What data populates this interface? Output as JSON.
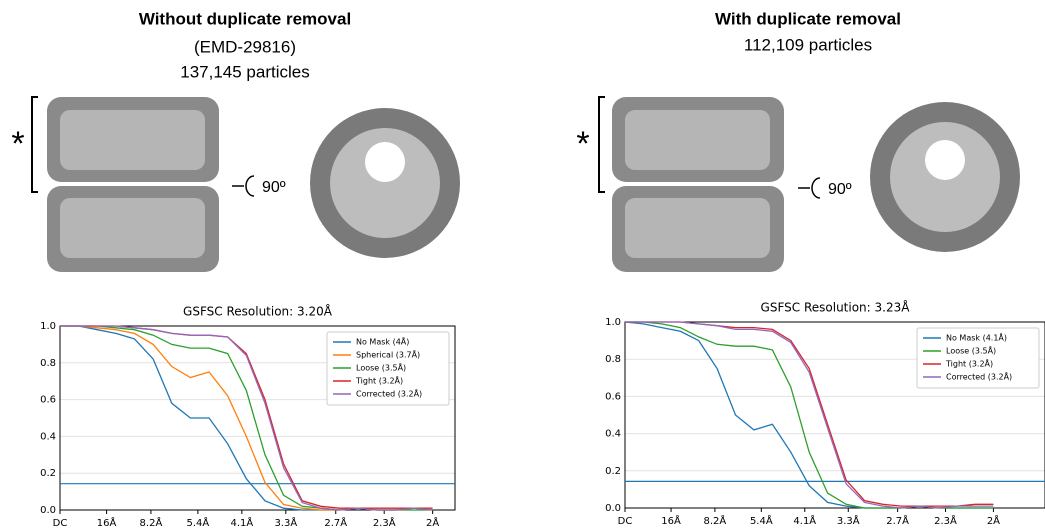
{
  "panels": [
    {
      "title": "Without duplicate removal",
      "lines": [
        "(EMD-29816)",
        "137,145 particles"
      ],
      "marker": "*",
      "rotation": "90º"
    },
    {
      "title": "With duplicate removal",
      "lines": [
        "112,109 particles"
      ],
      "marker": "*",
      "rotation": "90º"
    }
  ],
  "chart_data": [
    {
      "type": "line",
      "title": "GSFSC Resolution: 3.20Å",
      "x": [
        0,
        0.025,
        0.05,
        0.075,
        0.1,
        0.125,
        0.15,
        0.175,
        0.2,
        0.225,
        0.25,
        0.275,
        0.3,
        0.325,
        0.35,
        0.375,
        0.4,
        0.425,
        0.45,
        0.475,
        0.5
      ],
      "series": [
        {
          "name": "No Mask (4Å)",
          "color": "#1f77b4",
          "values": [
            1,
            1,
            0.98,
            0.96,
            0.93,
            0.82,
            0.58,
            0.5,
            0.5,
            0.36,
            0.17,
            0.05,
            0.01,
            0,
            0,
            0,
            0.01,
            0,
            0,
            0.01,
            0
          ]
        },
        {
          "name": "Spherical (3.7Å)",
          "color": "#ff7f0e",
          "values": [
            1,
            1,
            0.99,
            0.98,
            0.96,
            0.9,
            0.78,
            0.72,
            0.75,
            0.62,
            0.4,
            0.15,
            0.03,
            0.01,
            0,
            0,
            0.01,
            0,
            0,
            0.01,
            0
          ]
        },
        {
          "name": "Loose (3.5Å)",
          "color": "#2ca02c",
          "values": [
            1,
            1,
            1,
            0.99,
            0.98,
            0.95,
            0.9,
            0.88,
            0.88,
            0.85,
            0.65,
            0.3,
            0.08,
            0.02,
            0.01,
            0,
            0.01,
            0,
            0,
            0,
            0
          ]
        },
        {
          "name": "Tight (3.2Å)",
          "color": "#d62728",
          "values": [
            1,
            1,
            1,
            1,
            0.99,
            0.98,
            0.96,
            0.95,
            0.95,
            0.94,
            0.85,
            0.6,
            0.25,
            0.05,
            0.02,
            0.01,
            0.01,
            0.01,
            0.01,
            0.01,
            0.01
          ]
        },
        {
          "name": "Corrected (3.2Å)",
          "color": "#9467bd",
          "values": [
            1,
            1,
            1,
            1,
            0.99,
            0.98,
            0.96,
            0.95,
            0.95,
            0.94,
            0.84,
            0.58,
            0.23,
            0.04,
            0.01,
            0,
            0.01,
            0,
            0,
            0.01,
            0
          ]
        }
      ],
      "threshold": 0.143,
      "threshold_color": "#1f77b4",
      "xlim": [
        0,
        0.53
      ],
      "ylim": [
        0,
        1
      ],
      "xticks": [
        {
          "value": 0,
          "label": "DC"
        },
        {
          "value": 0.0625,
          "label": "16Å"
        },
        {
          "value": 0.122,
          "label": "8.2Å"
        },
        {
          "value": 0.185,
          "label": "5.4Å"
        },
        {
          "value": 0.244,
          "label": "4.1Å"
        },
        {
          "value": 0.303,
          "label": "3.3Å"
        },
        {
          "value": 0.37,
          "label": "2.7Å"
        },
        {
          "value": 0.435,
          "label": "2.3Å"
        },
        {
          "value": 0.5,
          "label": "2Å"
        }
      ],
      "yticks": [
        {
          "value": 0,
          "label": "0.0"
        },
        {
          "value": 0.2,
          "label": "0.2"
        },
        {
          "value": 0.4,
          "label": "0.4"
        },
        {
          "value": 0.6,
          "label": "0.6"
        },
        {
          "value": 0.8,
          "label": "0.8"
        },
        {
          "value": 1,
          "label": "1.0"
        }
      ],
      "grid": true,
      "legend": "upper right"
    },
    {
      "type": "line",
      "title": "GSFSC Resolution: 3.23Å",
      "x": [
        0,
        0.025,
        0.05,
        0.075,
        0.1,
        0.125,
        0.15,
        0.175,
        0.2,
        0.225,
        0.25,
        0.275,
        0.3,
        0.325,
        0.35,
        0.375,
        0.4,
        0.425,
        0.45,
        0.475,
        0.5
      ],
      "series": [
        {
          "name": "No Mask (4.1Å)",
          "color": "#1f77b4",
          "values": [
            1,
            0.99,
            0.97,
            0.95,
            0.9,
            0.75,
            0.5,
            0.42,
            0.45,
            0.3,
            0.12,
            0.03,
            0.01,
            0,
            0,
            0,
            0.01,
            0,
            0,
            0,
            0
          ]
        },
        {
          "name": "Loose (3.5Å)",
          "color": "#2ca02c",
          "values": [
            1,
            1,
            0.99,
            0.97,
            0.92,
            0.88,
            0.87,
            0.87,
            0.85,
            0.65,
            0.3,
            0.08,
            0.02,
            0,
            0,
            0,
            0.01,
            0,
            0,
            0,
            0
          ]
        },
        {
          "name": "Tight (3.2Å)",
          "color": "#d62728",
          "values": [
            1,
            1,
            1,
            1,
            0.99,
            0.98,
            0.97,
            0.97,
            0.96,
            0.9,
            0.75,
            0.45,
            0.15,
            0.04,
            0.02,
            0.01,
            0.01,
            0.01,
            0.01,
            0.02,
            0.02
          ]
        },
        {
          "name": "Corrected (3.2Å)",
          "color": "#9467bd",
          "values": [
            1,
            1,
            1,
            1,
            0.99,
            0.98,
            0.96,
            0.96,
            0.95,
            0.89,
            0.73,
            0.43,
            0.13,
            0.03,
            0.01,
            0,
            0.01,
            0,
            0.01,
            0.01,
            0.01
          ]
        }
      ],
      "threshold": 0.143,
      "threshold_color": "#1f77b4",
      "xlim": [
        0,
        0.57
      ],
      "ylim": [
        0,
        1
      ],
      "xticks": [
        {
          "value": 0,
          "label": "DC"
        },
        {
          "value": 0.0625,
          "label": "16Å"
        },
        {
          "value": 0.122,
          "label": "8.2Å"
        },
        {
          "value": 0.185,
          "label": "5.4Å"
        },
        {
          "value": 0.244,
          "label": "4.1Å"
        },
        {
          "value": 0.303,
          "label": "3.3Å"
        },
        {
          "value": 0.37,
          "label": "2.7Å"
        },
        {
          "value": 0.435,
          "label": "2.3Å"
        },
        {
          "value": 0.5,
          "label": "2Å"
        }
      ],
      "yticks": [
        {
          "value": 0,
          "label": "0.0"
        },
        {
          "value": 0.2,
          "label": "0.2"
        },
        {
          "value": 0.4,
          "label": "0.4"
        },
        {
          "value": 0.6,
          "label": "0.6"
        },
        {
          "value": 0.8,
          "label": "0.8"
        },
        {
          "value": 1,
          "label": "1.0"
        }
      ],
      "grid": true,
      "legend": "upper right"
    }
  ]
}
